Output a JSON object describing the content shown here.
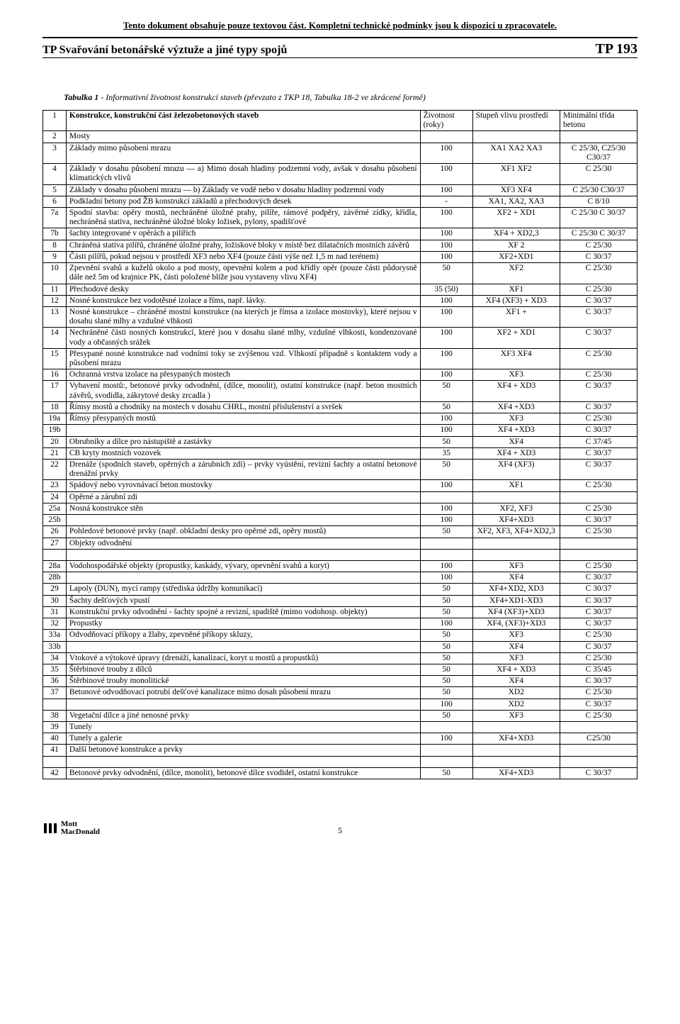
{
  "banner": "Tento dokument obsahuje pouze textovou část. Kompletní technické podmínky jsou k dispozici u zpracovatele.",
  "header_left": "TP Svařování betonářské výztuže a jiné typy spojů",
  "header_right": "TP 193",
  "caption_label": "Tabulka 1",
  "caption_text": "- Informativní životnost konstrukcí staveb (převzato z TKP 18, Tabulka 18-2 ve zkrácené formě)",
  "head": {
    "r1": "1",
    "desc": "Konstrukce, konstrukční část železobetonových staveb",
    "life": "Životnost (roky)",
    "env": "Stupeň vlivu prostředí",
    "class": "Minimální třída betonu",
    "r2": "2",
    "mosty": "Mosty"
  },
  "rows": [
    {
      "n": "3",
      "d": "Základy mimo působení mrazu",
      "l": "100",
      "e": "XA1 XA2 XA3",
      "c": "C 25/30, C25/30 C30/37"
    },
    {
      "n": "4",
      "d": "Základy v dosahu působení mrazu — a) Mimo dosah hladiny podzemní vody, avšak v dosahu působení klimatických vlivů",
      "l": "100",
      "e": "XF1 XF2",
      "c": "C 25/30"
    },
    {
      "n": "5",
      "d": "Základy v dosahu působení mrazu — b) Základy ve vodě nebo v dosahu hladiny podzemní vody",
      "l": "100",
      "e": "XF3 XF4",
      "c": "C 25/30 C30/37"
    },
    {
      "n": "6",
      "d": "Podkladní betony pod ŽB konstrukcí základů a přechodových desek",
      "l": "-",
      "e": "XA1, XA2, XA3",
      "c": "C 8/10"
    },
    {
      "n": "7a",
      "d": "Spodní stavba: opěry mostů, nechráněné úložné prahy, pilíře, rámové podpěry, závěrné zídky, křídla, nechráněná stativa, nechráněné úložné bloky ložisek, pylony, spadišťové",
      "l": "100",
      "e": "XF2 + XD1",
      "c": "C 25/30 C 30/37"
    },
    {
      "n": "7b",
      "d": "šachty integrované v opěrách a pilířích",
      "l": "100",
      "e": "XF4 + XD2,3",
      "c": "C 25/30 C 30/37"
    },
    {
      "n": "8",
      "d": "Chráněná stativa pilířů, chráněné úložné prahy, ložiskové bloky v místě bez dilatačních mostních závěrů",
      "l": "100",
      "e": "XF 2",
      "c": "C 25/30"
    },
    {
      "n": "9",
      "d": "Části pilířů, pokud nejsou v prostředí XF3 nebo XF4 (pouze části výše než 1,5 m nad terénem)",
      "l": "100",
      "e": "XF2+XD1",
      "c": "C 30/37"
    },
    {
      "n": "10",
      "d": "Zpevnění svahů a kuželů okolo a pod mosty, opevnění kolem a pod křídly opěr (pouze části půdorysně dále než 5m od krajnice PK, části položené blíže jsou vystaveny vlivu XF4)",
      "l": "50",
      "e": "XF2",
      "c": "C 25/30"
    },
    {
      "n": "11",
      "d": "Přechodové desky",
      "l": "35 (50)",
      "e": "XF1",
      "c": "C 25/30"
    },
    {
      "n": "12",
      "d": "Nosné konstrukce bez vodotěsné izolace a říms, např. lávky.",
      "l": "100",
      "e": "XF4 (XF3) + XD3",
      "c": "C 30/37"
    },
    {
      "n": "13",
      "d": "Nosné konstrukce – chráněné mostní konstrukce (na kterých je římsa a izolace mostovky), které nejsou v dosahu slané mlhy a vzdušné vlhkosti",
      "l": "100",
      "e": "XF1 +",
      "c": "C 30/37"
    },
    {
      "n": "14",
      "d": "Nechráněné části nosných konstrukcí, které jsou v dosahu slané mlhy, vzdušné vlhkosti, kondenzované vody a občasných srážek",
      "l": "100",
      "e": "XF2 + XD1",
      "c": "C 30/37"
    },
    {
      "n": "15",
      "d": "Přesypané nosné konstrukce nad vodními toky se zvýšenou vzd. Vlhkostí případně s kontaktem vody a působení mrazu",
      "l": "100",
      "e": "XF3 XF4",
      "c": "C 25/30"
    },
    {
      "n": "16",
      "d": "Ochranná vrstva izolace na přesypaných mostech",
      "l": "100",
      "e": "XF3",
      "c": "C 25/30"
    },
    {
      "n": "17",
      "d": "Vybavení mostů:, betonové prvky odvodnění, (dílce, monolit), ostatní konstrukce (např. beton mostních závěrů, svodidla, zákrytové desky zrcadla )",
      "l": "50",
      "e": "XF4 + XD3",
      "c": "C 30/37"
    },
    {
      "n": "18",
      "d": "Římsy mostů a chodníky na mostech v dosahu CHRL, mostní příslušenství a svršek",
      "l": "50",
      "e": "XF4 +XD3",
      "c": "C 30/37"
    },
    {
      "n": "19a",
      "d": "Římsy přesypaných mostů",
      "l": "100",
      "e": "XF3",
      "c": "C 25/30"
    },
    {
      "n": "19b",
      "d": "",
      "l": "100",
      "e": "XF4 +XD3",
      "c": "C 30/37"
    },
    {
      "n": "20",
      "d": "Obrubníky a dílce pro nástupiště a zastávky",
      "l": "50",
      "e": "XF4",
      "c": "C 37/45"
    },
    {
      "n": "21",
      "d": "CB kryty mostních vozovek",
      "l": "35",
      "e": "XF4 + XD3",
      "c": "C 30/37"
    },
    {
      "n": "22",
      "d": "Drenáže (spodních staveb, opěrných a zárubních zdí) – prvky vyústění, revizní šachty a ostatní betonové drenážní prvky",
      "l": "50",
      "e": "XF4 (XF3)",
      "c": "C 30/37"
    },
    {
      "n": "23",
      "d": "Spádový nebo vyrovnávací beton mostovky",
      "l": "100",
      "e": "XF1",
      "c": "C 25/30"
    },
    {
      "n": "24",
      "d": " Opěrné a zárubní zdi",
      "l": "",
      "e": "",
      "c": ""
    },
    {
      "n": "25a",
      "d": "Nosná konstrukce stěn",
      "l": "100",
      "e": "XF2, XF3",
      "c": "C 25/30"
    },
    {
      "n": "25b",
      "d": "",
      "l": "100",
      "e": "XF4+XD3",
      "c": "C 30/37"
    },
    {
      "n": "26",
      "d": "Pohledové betonové prvky (např. obkladní desky pro opěrné zdi, opěry mostů)",
      "l": "50",
      "e": "XF2, XF3, XF4+XD2,3",
      "c": "C 25/30"
    },
    {
      "n": "27",
      "d": "Objekty odvodnění",
      "l": "",
      "e": "",
      "c": ""
    },
    {
      "n": "28a",
      "d": "Vodohospodářské objekty (propustky, kaskády, vývary, opevnění svahů a koryt)",
      "l": "100",
      "e": "XF3",
      "c": "C 25/30"
    },
    {
      "n": "28b",
      "d": "",
      "l": "100",
      "e": "XF4",
      "c": "C 30/37"
    },
    {
      "n": "29",
      "d": "Lapoly (DUN), mycí rampy (střediska údržby komunikací)",
      "l": "50",
      "e": "XF4+XD2, XD3",
      "c": "C 30/37"
    },
    {
      "n": "30",
      "d": "Šachty dešťových vpustí",
      "l": "50",
      "e": "XF4+XD1-XD3",
      "c": "C 30/37"
    },
    {
      "n": "31",
      "d": "Konstrukční prvky odvodnění - šachty spojné a revizní, spadiště (mimo vodohosp. objekty)",
      "l": "50",
      "e": "XF4 (XF3)+XD3",
      "c": "C 30/37"
    },
    {
      "n": "32",
      "d": "Propustky",
      "l": "100",
      "e": "XF4, (XF3)+XD3",
      "c": "C 30/37"
    },
    {
      "n": "33a",
      "d": "Odvodňovací příkopy a žlaby, zpevněné příkopy skluzy,",
      "l": "50",
      "e": "XF3",
      "c": "C 25/30"
    },
    {
      "n": "33b",
      "d": "",
      "l": "50",
      "e": "XF4",
      "c": "C 30/37"
    },
    {
      "n": "34",
      "d": "Vtokové a výtokové úpravy (drenáží, kanalizací, koryt u mostů a propustků)",
      "l": "50",
      "e": "XF3",
      "c": "C 25/30"
    },
    {
      "n": "35",
      "d": "Štěrbinové trouby z dílců",
      "l": "50",
      "e": "XF4 + XD3",
      "c": "C 35/45"
    },
    {
      "n": "36",
      "d": "Štěrbinové trouby monolitické",
      "l": "50",
      "e": "XF4",
      "c": "C 30/37"
    },
    {
      "n": "37",
      "d": "Betonové odvodňovací potrubí dešťové kanalizace mimo dosah působení mrazu",
      "l": "50",
      "e": "XD2",
      "c": "C 25/30"
    },
    {
      "n": "",
      "d": "",
      "l": "100",
      "e": "XD2",
      "c": "C 30/37"
    },
    {
      "n": "38",
      "d": "Vegetační dílce a jiné nenosné prvky",
      "l": "50",
      "e": "XF3",
      "c": "C 25/30"
    },
    {
      "n": "39",
      "d": "Tunely",
      "l": "",
      "e": "",
      "c": ""
    },
    {
      "n": "40",
      "d": "Tunely a galerie",
      "l": "100",
      "e": "XF4+XD3",
      "c": "C25/30"
    },
    {
      "n": "41",
      "d": "Další betonové konstrukce a prvky",
      "l": "",
      "e": "",
      "c": ""
    },
    {
      "n": "42",
      "d": "Betonové prvky odvodnění, (dílce, monolit), betonové dílce svodidel, ostatní konstrukce",
      "l": "50",
      "e": "XF4+XD3",
      "c": "C 30/37"
    }
  ],
  "logo_text1": "Mott",
  "logo_text2": "MacDonald",
  "page_number": "5"
}
